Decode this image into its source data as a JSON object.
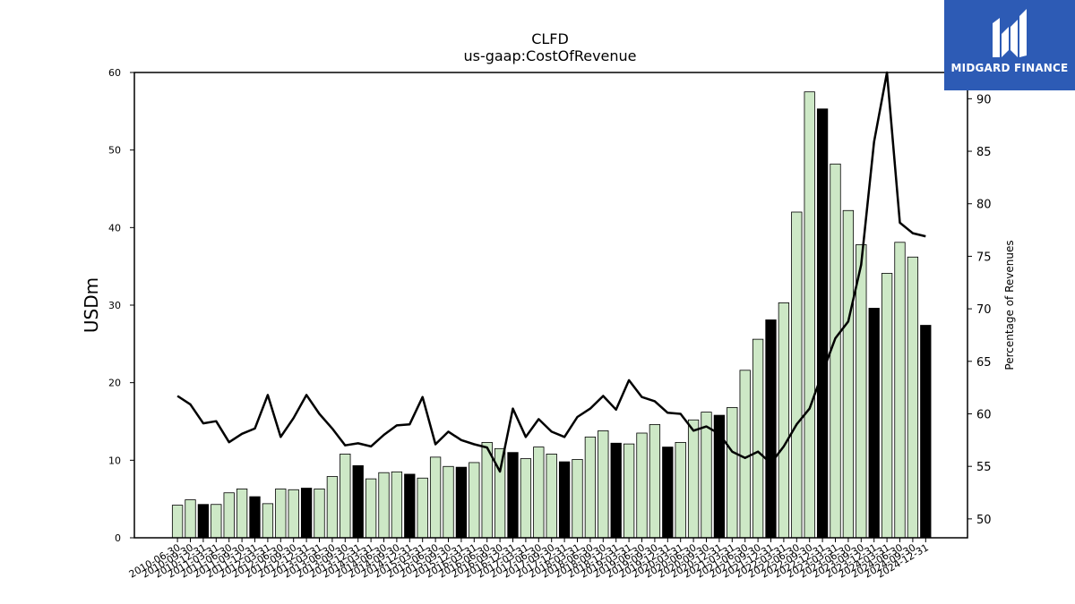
{
  "brand": {
    "name": "MIDGARD FINANCE",
    "logo_icon": "mf-monogram-icon",
    "color": "#2d5bb5"
  },
  "colors": {
    "bar_light": "#cde8c6",
    "bar_dark": "#000000",
    "line": "#000000"
  },
  "chart_data": {
    "type": "bar",
    "title": "CLFD",
    "subtitle": "us-gaap:CostOfRevenue",
    "ylabel": "USDm",
    "y2label": "Percentage of Revenues",
    "ylim": [
      0,
      60
    ],
    "yticks": [
      0,
      10,
      20,
      30,
      40,
      50,
      60
    ],
    "y2lim": [
      48.2,
      92.5
    ],
    "y2ticks": [
      50,
      55,
      60,
      65,
      70,
      75,
      80,
      85,
      90
    ],
    "legend": "none",
    "grid": false,
    "categories": [
      "2010-06-30",
      "2010-09-30",
      "2010-12-31",
      "2011-03-31",
      "2011-06-30",
      "2011-09-30",
      "2011-12-31",
      "2012-03-31",
      "2012-06-30",
      "2012-09-30",
      "2012-12-31",
      "2013-03-31",
      "2013-06-30",
      "2013-09-30",
      "2013-12-31",
      "2014-03-31",
      "2014-06-30",
      "2014-09-30",
      "2014-12-31",
      "2015-03-31",
      "2015-06-30",
      "2015-09-30",
      "2015-12-31",
      "2016-03-31",
      "2016-06-30",
      "2016-09-30",
      "2016-12-31",
      "2017-03-31",
      "2017-06-30",
      "2017-09-30",
      "2017-12-31",
      "2018-03-31",
      "2018-06-30",
      "2018-09-30",
      "2018-12-31",
      "2019-03-31",
      "2019-06-30",
      "2019-09-30",
      "2019-12-31",
      "2020-03-31",
      "2020-06-30",
      "2020-09-30",
      "2020-12-31",
      "2021-03-31",
      "2021-06-30",
      "2021-09-30",
      "2021-12-31",
      "2022-03-31",
      "2022-06-30",
      "2022-09-30",
      "2022-12-31",
      "2023-03-31",
      "2023-06-30",
      "2023-09-30",
      "2023-12-31",
      "2024-03-31",
      "2024-06-30",
      "2024-09-30",
      "2024-12-31"
    ],
    "xtick_labels": [
      "2010-06-30",
      "2010-09-30",
      "2010-12-31",
      "2011-03-31",
      "2011-06-30",
      "2011-09-30",
      "2011-12-31",
      "2012-03-31",
      "2012-06-30",
      "2012-09-30",
      "2012-12-31",
      "2013-03-31",
      "2013-06-30",
      "2013-09-30",
      "2013-12-31",
      "2014-03-31",
      "2014-06-30",
      "2014-09-30",
      "2014-12-31",
      "2015-03-31",
      "2015-06-30",
      "2015-09-30",
      "2015-12-31",
      "2016-03-31",
      "2016-06-30",
      "2016-09-30",
      "2016-12-31",
      "2017-03-31",
      "2017-06-30",
      "2017-09-30",
      "2017-12-31",
      "2018-03-31",
      "2018-06-30",
      "2018-09-30",
      "2018-12-31",
      "2019-03-31",
      "2019-06-30",
      "2019-09-30",
      "2019-12-31",
      "2020-03-31",
      "2020-06-30",
      "2020-09-30",
      "2020-12-31",
      "2021-03-31",
      "2021-06-30",
      "2021-09-30",
      "2021-12-31",
      "2022-03-31",
      "2022-06-30",
      "2022-09-30",
      "2022-12-31",
      "2023-03-31",
      "2023-06-30",
      "2023-09-30",
      "2023-12-31",
      "2024-03-31",
      "2024-06-30",
      "2024-09-30",
      "2024-12-31"
    ],
    "series": [
      {
        "type": "bar",
        "axis": "left",
        "values": [
          4.2,
          4.9,
          4.3,
          4.3,
          5.8,
          6.3,
          5.3,
          4.4,
          6.3,
          6.2,
          6.4,
          6.3,
          7.9,
          10.8,
          9.3,
          7.6,
          8.4,
          8.5,
          8.2,
          7.7,
          10.4,
          9.2,
          9.1,
          9.7,
          12.3,
          11.5,
          11.0,
          10.2,
          11.7,
          10.8,
          9.8,
          10.1,
          13.0,
          13.8,
          12.2,
          12.1,
          13.5,
          14.6,
          11.7,
          12.3,
          15.2,
          16.2,
          15.8,
          16.8,
          21.6,
          25.6,
          28.1,
          30.3,
          42.0,
          57.5,
          55.3,
          48.2,
          42.2,
          37.8,
          29.6,
          34.1,
          38.1,
          36.2,
          27.4
        ],
        "highlight": [
          false,
          false,
          true,
          false,
          false,
          false,
          true,
          false,
          false,
          false,
          true,
          false,
          false,
          false,
          true,
          false,
          false,
          false,
          true,
          false,
          false,
          false,
          true,
          false,
          false,
          false,
          true,
          false,
          false,
          false,
          true,
          false,
          false,
          false,
          true,
          false,
          false,
          false,
          true,
          false,
          false,
          false,
          true,
          false,
          false,
          false,
          true,
          false,
          false,
          false,
          true,
          false,
          false,
          false,
          true,
          false,
          false,
          false,
          true
        ]
      },
      {
        "type": "line",
        "axis": "right",
        "values": [
          61.7,
          60.9,
          59.1,
          59.3,
          57.3,
          58.1,
          58.6,
          61.8,
          57.8,
          59.6,
          61.8,
          60.0,
          58.6,
          57.0,
          57.2,
          56.9,
          58.0,
          58.9,
          59.0,
          61.6,
          57.1,
          58.3,
          57.5,
          57.1,
          56.8,
          54.5,
          60.5,
          57.8,
          59.5,
          58.3,
          57.8,
          59.7,
          60.5,
          61.7,
          60.4,
          63.2,
          61.6,
          61.2,
          60.1,
          60.0,
          58.4,
          58.8,
          58.1,
          56.4,
          55.8,
          56.4,
          55.3,
          56.9,
          59.0,
          60.5,
          63.9,
          67.2,
          68.8,
          74.2,
          85.9,
          92.5,
          78.2,
          77.2,
          76.9
        ]
      }
    ]
  }
}
